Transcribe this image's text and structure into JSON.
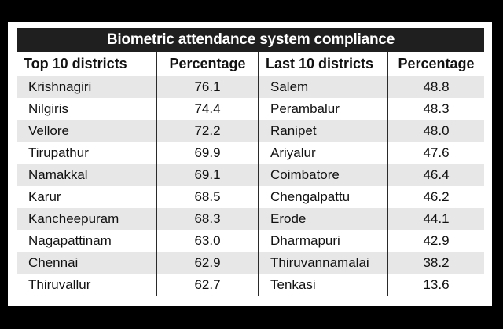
{
  "title": "Biometric attendance system compliance",
  "headers": {
    "top_districts": "Top 10 districts",
    "top_percentage": "Percentage",
    "last_districts": "Last 10 districts",
    "last_percentage": "Percentage"
  },
  "rows": [
    {
      "top_name": "Krishnagiri",
      "top_pct": "76.1",
      "last_name": "Salem",
      "last_pct": "48.8"
    },
    {
      "top_name": "Nilgiris",
      "top_pct": "74.4",
      "last_name": "Perambalur",
      "last_pct": "48.3"
    },
    {
      "top_name": "Vellore",
      "top_pct": "72.2",
      "last_name": "Ranipet",
      "last_pct": "48.0"
    },
    {
      "top_name": "Tirupathur",
      "top_pct": "69.9",
      "last_name": "Ariyalur",
      "last_pct": "47.6"
    },
    {
      "top_name": "Namakkal",
      "top_pct": "69.1",
      "last_name": "Coimbatore",
      "last_pct": "46.4"
    },
    {
      "top_name": "Karur",
      "top_pct": "68.5",
      "last_name": "Chengalpattu",
      "last_pct": "46.2"
    },
    {
      "top_name": "Kancheepuram",
      "top_pct": "68.3",
      "last_name": "Erode",
      "last_pct": "44.1"
    },
    {
      "top_name": "Nagapattinam",
      "top_pct": "63.0",
      "last_name": "Dharmapuri",
      "last_pct": "42.9"
    },
    {
      "top_name": "Chennai",
      "top_pct": "62.9",
      "last_name": "Thiruvannamalai",
      "last_pct": "38.2"
    },
    {
      "top_name": "Thiruvallur",
      "top_pct": "62.7",
      "last_name": "Tenkasi",
      "last_pct": "13.6"
    }
  ]
}
